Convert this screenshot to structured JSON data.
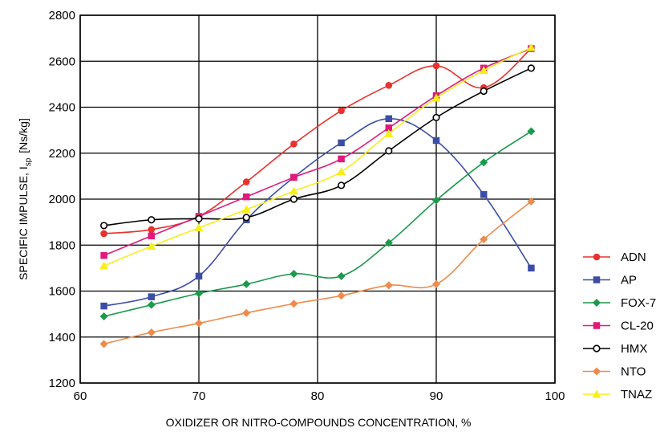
{
  "chart_data": {
    "type": "line",
    "xlabel": "OXIDIZER OR NITRO-COMPOUNDS CONCENTRATION, %",
    "ylabel_main": "SPECIFIC IMPULSE, I",
    "ylabel_sub": "sp",
    "ylabel_unit": "[Ns/kg]",
    "xlim": [
      60,
      100
    ],
    "ylim": [
      1200,
      2800
    ],
    "xticks": [
      "60",
      "70",
      "80",
      "90",
      "100"
    ],
    "yticks": [
      "1200",
      "1400",
      "1600",
      "1800",
      "2000",
      "2200",
      "2400",
      "2600",
      "2800"
    ],
    "grid": true,
    "legend_position": "right",
    "x": [
      62,
      66,
      70,
      74,
      78,
      82,
      86,
      90,
      94,
      98
    ],
    "series": [
      {
        "name": "ADN",
        "color": "#e8322d",
        "marker": "circle-filled",
        "values": [
          1850,
          1868,
          1925,
          2075,
          2240,
          2385,
          2495,
          2580,
          2485,
          2655
        ]
      },
      {
        "name": "AP",
        "color": "#3b4da6",
        "marker": "square-filled",
        "values": [
          1535,
          1575,
          1665,
          1910,
          2095,
          2245,
          2350,
          2255,
          2020,
          1700
        ]
      },
      {
        "name": "FOX-7",
        "color": "#1a9a4a",
        "marker": "diamond-filled",
        "values": [
          1490,
          1540,
          1590,
          1630,
          1675,
          1665,
          1810,
          1995,
          2160,
          2295
        ]
      },
      {
        "name": "CL-20",
        "color": "#e0197a",
        "marker": "square-filled",
        "values": [
          1755,
          1840,
          1925,
          2010,
          2095,
          2175,
          2310,
          2450,
          2570,
          2655
        ]
      },
      {
        "name": "HMX",
        "color": "#000000",
        "marker": "circle-open",
        "values": [
          1885,
          1910,
          1915,
          1920,
          2000,
          2060,
          2210,
          2355,
          2470,
          2570
        ]
      },
      {
        "name": "NTO",
        "color": "#f08a4b",
        "marker": "diamond-filled",
        "values": [
          1370,
          1420,
          1460,
          1505,
          1545,
          1580,
          1625,
          1630,
          1825,
          1990
        ]
      },
      {
        "name": "TNAZ",
        "color": "#f7ee1a",
        "marker": "triangle-filled",
        "values": [
          1710,
          1795,
          1875,
          1955,
          2035,
          2120,
          2285,
          2440,
          2560,
          2660
        ]
      }
    ]
  }
}
